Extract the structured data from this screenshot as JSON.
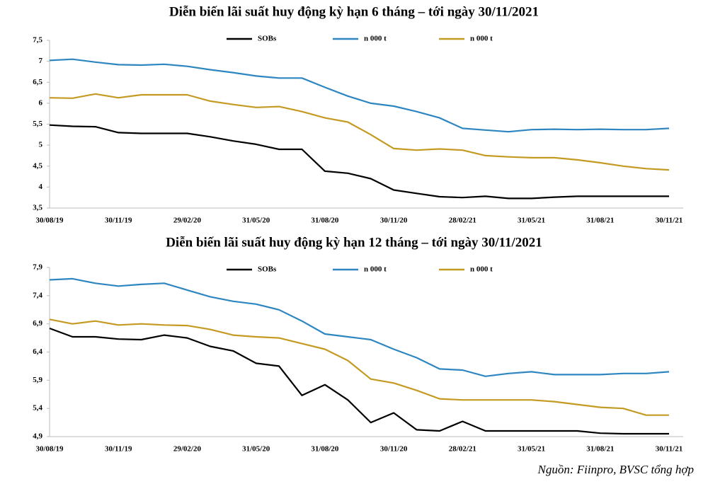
{
  "chart_data": [
    {
      "type": "line",
      "title": "Diễn biến lãi suất huy động kỳ hạn 6 tháng – tới ngày 30/11/2021",
      "categories": [
        "30/08/19",
        null,
        null,
        "30/11/19",
        null,
        null,
        "29/02/20",
        null,
        null,
        "31/05/20",
        null,
        null,
        "31/08/20",
        null,
        null,
        "30/11/20",
        null,
        null,
        "28/02/21",
        null,
        null,
        "31/05/21",
        null,
        null,
        "31/08/21",
        null,
        null,
        "30/11/21"
      ],
      "series": [
        {
          "name": "SOBs",
          "color": "#000000",
          "values": [
            5.48,
            5.45,
            5.44,
            5.3,
            5.28,
            5.28,
            5.28,
            5.2,
            5.1,
            5.02,
            4.9,
            4.9,
            4.38,
            4.33,
            4.2,
            3.93,
            3.85,
            3.77,
            3.75,
            3.78,
            3.73,
            3.73,
            3.76,
            3.78,
            3.78,
            3.78,
            3.78,
            3.78
          ]
        },
        {
          "name": "n 000 t",
          "color": "#2e86c1",
          "values": [
            7.02,
            7.05,
            6.98,
            6.92,
            6.91,
            6.93,
            6.88,
            6.8,
            6.73,
            6.65,
            6.6,
            6.6,
            6.38,
            6.17,
            6.0,
            5.93,
            5.8,
            5.65,
            5.4,
            5.36,
            5.32,
            5.37,
            5.38,
            5.37,
            5.38,
            5.37,
            5.37,
            5.4
          ]
        },
        {
          "name": "n 000 t",
          "color": "#c49a22",
          "values": [
            6.13,
            6.12,
            6.22,
            6.13,
            6.2,
            6.2,
            6.2,
            6.05,
            5.97,
            5.9,
            5.92,
            5.8,
            5.65,
            5.55,
            5.25,
            4.92,
            4.88,
            4.91,
            4.88,
            4.75,
            4.72,
            4.7,
            4.7,
            4.65,
            4.58,
            4.5,
            4.44,
            4.41
          ]
        }
      ],
      "ylim": [
        3.5,
        7.5
      ],
      "yticks": [
        {
          "value": 3.5,
          "label": "3,5"
        },
        4,
        {
          "value": 4.5,
          "label": "4,5"
        },
        5,
        {
          "value": 5.5,
          "label": "5,5"
        },
        6,
        {
          "value": 6.5,
          "label": "6,5"
        },
        7,
        {
          "value": 7.5,
          "label": "7,5"
        }
      ]
    },
    {
      "type": "line",
      "title": "Diễn biến lãi suất huy động kỳ hạn 12 tháng – tới ngày 30/11/2021",
      "categories": [
        "30/08/19",
        null,
        null,
        "30/11/19",
        null,
        null,
        "29/02/20",
        null,
        null,
        "31/05/20",
        null,
        null,
        "31/08/20",
        null,
        null,
        "30/11/20",
        null,
        null,
        "28/02/21",
        null,
        null,
        "31/05/21",
        null,
        null,
        "31/08/21",
        null,
        null,
        "30/11/21"
      ],
      "series": [
        {
          "name": "SOBs",
          "color": "#000000",
          "values": [
            6.82,
            6.67,
            6.67,
            6.63,
            6.62,
            6.7,
            6.65,
            6.5,
            6.42,
            6.2,
            6.15,
            5.63,
            5.82,
            5.55,
            5.15,
            5.32,
            5.02,
            5.0,
            5.17,
            5.0,
            5.0,
            5.0,
            5.0,
            5.0,
            4.96,
            4.95,
            4.95,
            4.95
          ]
        },
        {
          "name": "n 000 t",
          "color": "#2e86c1",
          "values": [
            7.68,
            7.7,
            7.62,
            7.57,
            7.6,
            7.62,
            7.5,
            7.38,
            7.3,
            7.25,
            7.15,
            6.95,
            6.72,
            6.67,
            6.62,
            6.45,
            6.3,
            6.1,
            6.08,
            5.97,
            6.02,
            6.05,
            6.0,
            6.0,
            6.0,
            6.02,
            6.02,
            6.05
          ]
        },
        {
          "name": "n 000 t",
          "color": "#c49a22",
          "values": [
            6.98,
            6.9,
            6.95,
            6.88,
            6.9,
            6.88,
            6.87,
            6.8,
            6.7,
            6.67,
            6.65,
            6.55,
            6.45,
            6.25,
            5.92,
            5.85,
            5.72,
            5.57,
            5.55,
            5.55,
            5.55,
            5.55,
            5.52,
            5.47,
            5.42,
            5.4,
            5.28,
            5.28
          ]
        }
      ],
      "ylim": [
        4.9,
        7.9
      ],
      "yticks": [
        {
          "value": 4.9,
          "label": "4,9"
        },
        {
          "value": 5.4,
          "label": "5,4"
        },
        {
          "value": 5.9,
          "label": "5,9"
        },
        {
          "value": 6.4,
          "label": "6,4"
        },
        {
          "value": 6.9,
          "label": "6,9"
        },
        {
          "value": 7.4,
          "label": "7,4"
        },
        {
          "value": 7.9,
          "label": "7,9"
        }
      ]
    }
  ],
  "source": "Nguồn: Fiinpro, BVSC tổng hợp"
}
